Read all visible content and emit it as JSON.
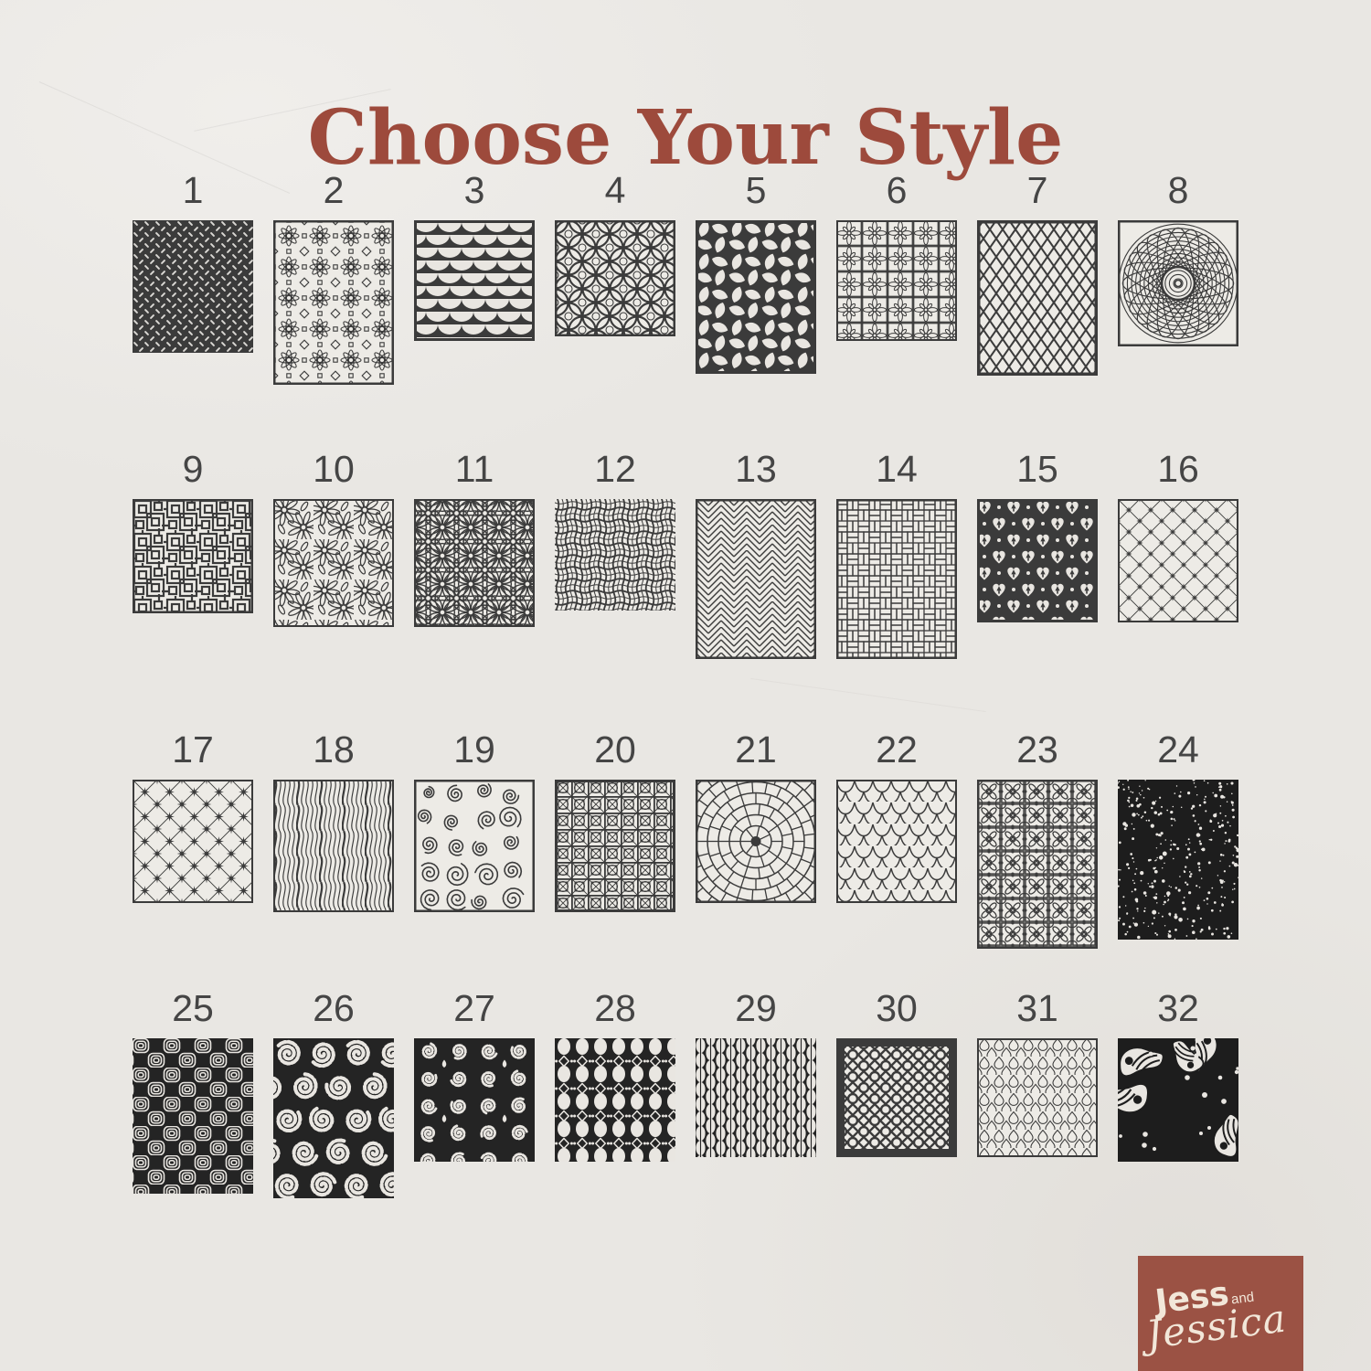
{
  "page": {
    "title": "Choose Your Style"
  },
  "colors": {
    "background": "#e9e7e3",
    "title": "#9d4a3c",
    "ink": "#3b3b3b",
    "tile_paper": "#edebe6",
    "tile_black": "#242424",
    "speckle_black": "#1d1d1d",
    "stencil_white": "#e9e6e1",
    "number": "#454545",
    "logo_bg": "#9b5244",
    "logo_text": "#f2e7d9"
  },
  "grid": {
    "rows": 4,
    "cols": 8,
    "total_styles": 32
  },
  "tiles": [
    {
      "number": "1",
      "name": "knurled-weave"
    },
    {
      "number": "2",
      "name": "moroccan-star-flower"
    },
    {
      "number": "3",
      "name": "scallop-scales"
    },
    {
      "number": "4",
      "name": "interlocking-circles"
    },
    {
      "number": "5",
      "name": "petal-pinwheel"
    },
    {
      "number": "6",
      "name": "ornate-floral-lattice"
    },
    {
      "number": "7",
      "name": "diamond-mesh"
    },
    {
      "number": "8",
      "name": "spiral-guilloche"
    },
    {
      "number": "9",
      "name": "chinese-lattice"
    },
    {
      "number": "10",
      "name": "scattered-daisies"
    },
    {
      "number": "11",
      "name": "daisy-grid"
    },
    {
      "number": "12",
      "name": "burlap-weave"
    },
    {
      "number": "13",
      "name": "herringbone"
    },
    {
      "number": "14",
      "name": "basketweave-brick"
    },
    {
      "number": "15",
      "name": "fleur-heart-damask"
    },
    {
      "number": "16",
      "name": "diamond-lattice-dots"
    },
    {
      "number": "17",
      "name": "star-lattice"
    },
    {
      "number": "18",
      "name": "twisted-strands"
    },
    {
      "number": "19",
      "name": "swirl-doodle"
    },
    {
      "number": "20",
      "name": "cane-webbing"
    },
    {
      "number": "21",
      "name": "radial-cobblestone"
    },
    {
      "number": "22",
      "name": "fish-scale-ogee"
    },
    {
      "number": "23",
      "name": "floral-tile-lattice"
    },
    {
      "number": "24",
      "name": "speckled-dots"
    },
    {
      "number": "25",
      "name": "nested-squares"
    },
    {
      "number": "26",
      "name": "bold-spirals"
    },
    {
      "number": "27",
      "name": "scroll-damask"
    },
    {
      "number": "28",
      "name": "bead-chain"
    },
    {
      "number": "29",
      "name": "lens-chain"
    },
    {
      "number": "30",
      "name": "moroccan-quatrefoil"
    },
    {
      "number": "31",
      "name": "teardrop-mesh"
    },
    {
      "number": "32",
      "name": "paisley-doodle"
    }
  ],
  "logo": {
    "jess": "Jess",
    "and": "and",
    "jessica": "Jessica"
  }
}
